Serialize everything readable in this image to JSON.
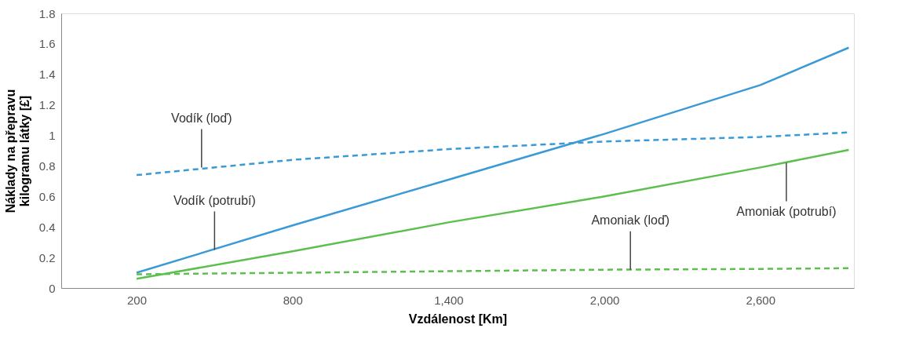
{
  "chart_data": {
    "type": "line",
    "xlabel": "Vzdálenost [Km]",
    "ylabel": "Náklady na přepravu kilogramu látky [£]",
    "x": [
      200,
      800,
      1400,
      2000,
      2600,
      2940
    ],
    "series": [
      {
        "color": "#3a9ad6",
        "line_style": "solid",
        "values": [
          0.1,
          0.41,
          0.71,
          1.01,
          1.33,
          1.575
        ]
      },
      {
        "color": "#3a9ad6",
        "line_style": "dashed",
        "values": [
          0.74,
          0.84,
          0.91,
          0.96,
          0.99,
          1.02
        ]
      },
      {
        "color": "#5cbf4e",
        "line_style": "solid",
        "values": [
          0.06,
          0.24,
          0.43,
          0.6,
          0.79,
          0.905
        ]
      },
      {
        "color": "#5cbf4e",
        "line_style": "dashed",
        "values": [
          0.09,
          0.1,
          0.11,
          0.12,
          0.125,
          0.13
        ]
      }
    ],
    "xlim": [
      -90,
      2960
    ],
    "ylim": [
      0,
      1.8
    ],
    "xticks": [
      200,
      800,
      {
        "value": 1400,
        "label": "1,400"
      },
      {
        "value": 2000,
        "label": "2,000"
      },
      {
        "value": 2600,
        "label": "2,600"
      }
    ],
    "yticks": [
      0,
      0.2,
      0.4,
      0.6,
      0.8,
      1,
      1.2,
      1.4,
      1.6,
      1.8
    ],
    "annotations": [
      {
        "text": "Vodík (loď)",
        "x": 450,
        "y": 0.79
      },
      {
        "text": "Vodík (potrubí)",
        "x": 500,
        "y": 0.25
      },
      {
        "text": "Amoniak (loď)",
        "x": 2100,
        "y": 0.12
      },
      {
        "text": "Amoniak (potrubí)",
        "x": 2700,
        "y": 0.82
      }
    ],
    "grid": false,
    "marker": "none"
  }
}
